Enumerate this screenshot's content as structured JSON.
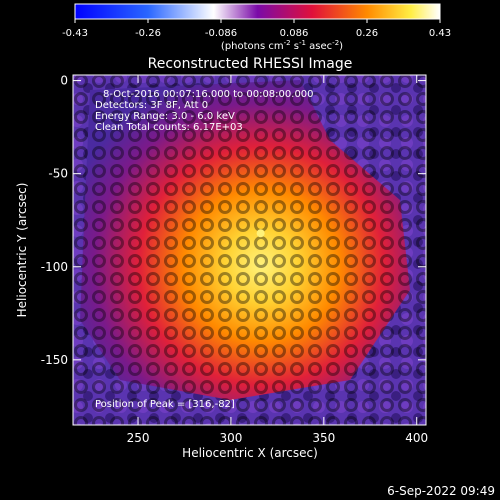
{
  "chart_data": {
    "type": "heatmap",
    "title": "Reconstructed RHESSI Image",
    "xlabel": "Heliocentric X (arcsec)",
    "ylabel": "Heliocentric Y (arcsec)",
    "xlim": [
      215,
      405
    ],
    "ylim": [
      -185,
      3
    ],
    "x_ticks": [
      250,
      300,
      350,
      400
    ],
    "y_ticks": [
      0,
      -50,
      -100,
      -150
    ],
    "annotations": [
      "8-Oct-2016 00:07:16.000 to 00:08:00.000",
      "Detectors: 3F 8F, Att 0",
      "Energy Range: 3.0 - 6.0 keV",
      "Clean     Total counts: 6.17E+03"
    ],
    "peak_label": "Position of Peak = [316,-82]",
    "peak": {
      "x": 316,
      "y": -82
    },
    "colorbar": {
      "min": -0.43,
      "max": 0.43,
      "ticks": [
        "-0.43",
        "-0.26",
        "-0.086",
        "0.086",
        "0.26",
        "0.43"
      ],
      "label_main": "(photons cm",
      "label_exp1": "-2",
      "label_mid": " s",
      "label_exp2": "-1",
      "label_mid2": " asec",
      "label_exp3": "-2",
      "label_end": ")",
      "colors": [
        "#0000ff",
        "#0066ff",
        "#ffffff",
        "#6a0dad",
        "#e0103a",
        "#ff8800",
        "#ffee44",
        "#ffffff"
      ]
    },
    "footer_date": "6-Sep-2022 09:49"
  }
}
